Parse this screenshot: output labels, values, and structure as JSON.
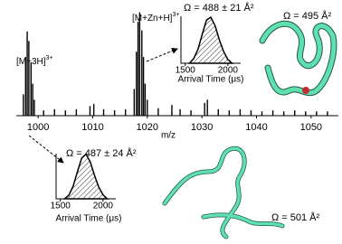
{
  "chart_data": [
    {
      "type": "stem",
      "xlabel": "m/z",
      "xlim": [
        996,
        1055
      ],
      "ylim": [
        0,
        100
      ],
      "xticks": [
        1000,
        1010,
        1020,
        1030,
        1040,
        1050
      ],
      "color": "#000000",
      "annotations": [
        {
          "text": "[M+3H]",
          "sup": "3+"
        },
        {
          "text": "[M+Zn+H]",
          "sup": "3+"
        }
      ],
      "x": [
        997.3,
        997.7,
        998.0,
        998.3,
        998.7,
        999.0,
        999.3,
        1001,
        1003,
        1005,
        1007,
        1009.5,
        1010.2,
        1012,
        1014,
        1016,
        1017.6,
        1018.0,
        1018.3,
        1018.6,
        1019.0,
        1019.3,
        1019.6,
        1020.0,
        1022,
        1024.5,
        1026,
        1028,
        1030.5,
        1031,
        1033,
        1035,
        1037,
        1039,
        1041,
        1043,
        1045,
        1047,
        1049,
        1051,
        1053
      ],
      "values": [
        20,
        55,
        79,
        70,
        50,
        30,
        15,
        5,
        6,
        5,
        6,
        9,
        11,
        6,
        5,
        6,
        25,
        60,
        88,
        97,
        80,
        55,
        30,
        15,
        7,
        10,
        6,
        5,
        12,
        15,
        6,
        5,
        6,
        5,
        4,
        5,
        4,
        5,
        4,
        4,
        4
      ]
    },
    {
      "type": "area",
      "title": "Ω = 488 ± 21 Å²",
      "xlabel": "Arrival Time (μs)",
      "xlim": [
        1450,
        2150
      ],
      "ylim": [
        0,
        100
      ],
      "xticks": [
        1500,
        2000
      ],
      "color": "#000000",
      "x": [
        1550,
        1600,
        1650,
        1700,
        1750,
        1800,
        1850,
        1900,
        1950,
        2000,
        2050
      ],
      "values": [
        0,
        10,
        30,
        62,
        92,
        98,
        80,
        50,
        25,
        8,
        0
      ]
    },
    {
      "type": "area",
      "title": "Ω = 487 ± 24 Å²",
      "xlabel": "Arrival Time (μs)",
      "xlim": [
        1450,
        2150
      ],
      "ylim": [
        0,
        100
      ],
      "xticks": [
        1500,
        2000
      ],
      "color": "#000000",
      "x": [
        1550,
        1600,
        1650,
        1700,
        1750,
        1800,
        1850,
        1900,
        1950,
        2000,
        2050
      ],
      "values": [
        0,
        8,
        28,
        60,
        90,
        99,
        82,
        52,
        26,
        9,
        0
      ]
    }
  ],
  "structures": [
    {
      "label": "Ω = 495 Å²"
    },
    {
      "label": "Ω = 501 Å²"
    }
  ]
}
